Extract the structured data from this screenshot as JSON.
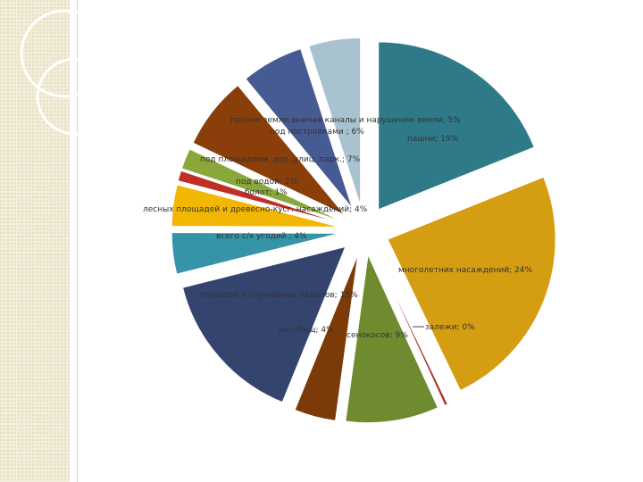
{
  "chart_data": {
    "type": "pie",
    "exploded": true,
    "slices": [
      {
        "label": "пашни; 19%",
        "name": "пашни",
        "value": 19,
        "color": "#2e7a88"
      },
      {
        "label": "многолетних насаждений; 24%",
        "name": "многолетних насаждений",
        "value": 24,
        "color": "#d59e12"
      },
      {
        "label": "залежи; 0%",
        "name": "залежи",
        "value": 0.3,
        "color": "#a83228"
      },
      {
        "label": "сенокосов; 9%",
        "name": "сенокосов",
        "value": 9,
        "color": "#6e8b2f"
      },
      {
        "label": "пастбищ; 4%",
        "name": "пастбищ",
        "value": 4,
        "color": "#7b3a08"
      },
      {
        "label": "огородов и служебных наделов; 15%",
        "name": "огородов и служебных наделов",
        "value": 15,
        "color": "#34446e"
      },
      {
        "label": "всего с/х угодий ; 4%",
        "name": "всего с/х угодий",
        "value": 4,
        "color": "#3594a8"
      },
      {
        "label": "лесных площадей и древесно-кусг. насаждений; 4%",
        "name": "лесных площадей и древесно-кусг. насаждений",
        "value": 4,
        "color": "#f2b705"
      },
      {
        "label": "болот; 1%",
        "name": "болот",
        "value": 1,
        "color": "#bf2f24"
      },
      {
        "label": "под водой; 2%",
        "name": "под водой",
        "value": 2,
        "color": "#8aa83a"
      },
      {
        "label": "под площадями, дор.,улиц.,парк.; 7%",
        "name": "под площадями, дор.,улиц.,парк.",
        "value": 7,
        "color": "#8a3f0a"
      },
      {
        "label": "под постройками ; 6%",
        "name": "под постройками",
        "value": 6,
        "color": "#465a94"
      },
      {
        "label": "прочие земли,вкючая каналы и нарушение земли; 5%",
        "name": "прочие земли,вкючая каналы и нарушение земли",
        "value": 5,
        "color": "#a8c2cf"
      }
    ]
  }
}
